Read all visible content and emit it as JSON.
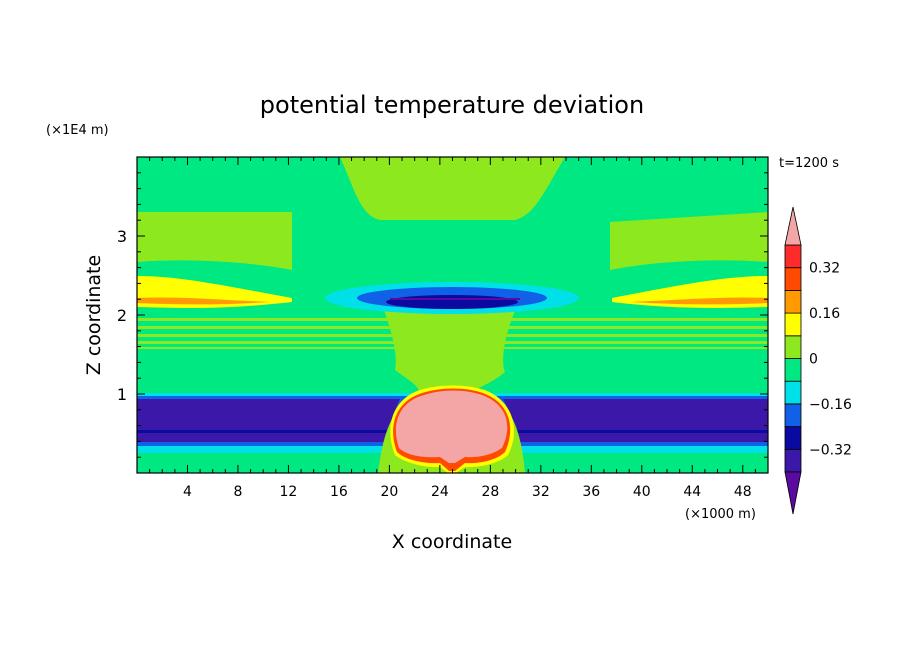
{
  "chart_data": {
    "type": "heatmap",
    "title": "potential temperature deviation",
    "xlabel": "X coordinate",
    "ylabel": "Z coordinate",
    "x_unit": "(×1000 m)",
    "y_unit": "(×1E4 m)",
    "time_label": "t=1200 s",
    "xlim": [
      0,
      50
    ],
    "ylim": [
      0,
      4
    ],
    "x_ticks": [
      "4",
      "8",
      "12",
      "16",
      "20",
      "24",
      "28",
      "32",
      "36",
      "40",
      "44",
      "48"
    ],
    "y_ticks": [
      "1",
      "2",
      "3"
    ],
    "colorbar": {
      "levels": [
        -0.4,
        -0.32,
        -0.24,
        -0.16,
        -0.08,
        0,
        0.08,
        0.16,
        0.24,
        0.32,
        0.4
      ],
      "labels": [
        "0.32",
        "0.16",
        "0",
        "-0.16",
        "-0.32"
      ],
      "colors": [
        "#5a0aa0",
        "#3c18a8",
        "#0a0aa0",
        "#1060e8",
        "#00e0e8",
        "#00e882",
        "#8ee81e",
        "#ffff00",
        "#ff9a00",
        "#ff4a00",
        "#ff2a2a",
        "#f4a6a6"
      ],
      "extend": "both"
    },
    "regions": [
      {
        "name": "warm-bubble",
        "x_center": 25,
        "z_center": 0.55,
        "value": "> 0.4"
      },
      {
        "name": "cold-band-left",
        "x_range": [
          0,
          21
        ],
        "z_range": [
          0.3,
          0.95
        ],
        "value": "< -0.32"
      },
      {
        "name": "cold-band-right",
        "x_range": [
          29,
          50
        ],
        "z_range": [
          0.3,
          0.95
        ],
        "value": "< -0.32"
      },
      {
        "name": "cold-lens-upper",
        "x_center": 25,
        "z_center": 2.15,
        "value": "< -0.24"
      },
      {
        "name": "warm-strip-left",
        "x_range": [
          0,
          12
        ],
        "z_range": [
          2.05,
          2.45
        ],
        "value": "0.16 to 0.32"
      },
      {
        "name": "warm-strip-right",
        "x_range": [
          38,
          50
        ],
        "z_range": [
          2.05,
          2.45
        ],
        "value": "0.16 to 0.32"
      }
    ]
  }
}
